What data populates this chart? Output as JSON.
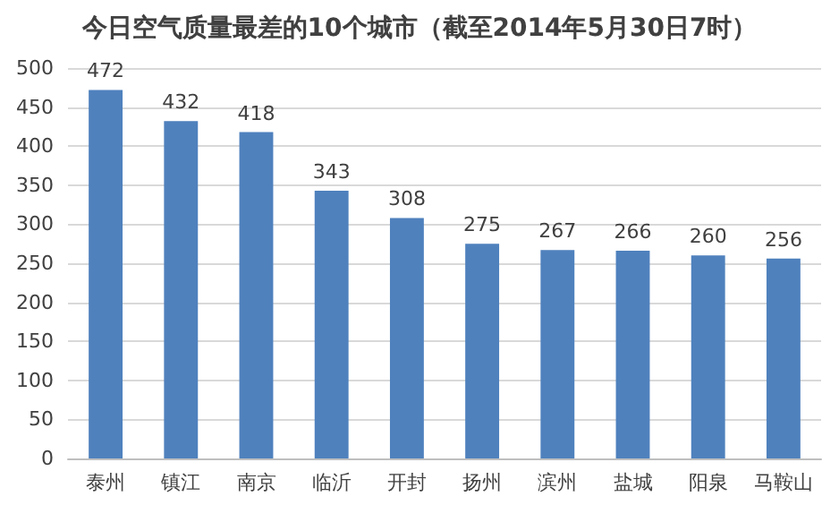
{
  "chart_data": {
    "type": "bar",
    "title": "今日空气质量最差的10个城市（截至2014年5月30日7时）",
    "categories": [
      "泰州",
      "镇江",
      "南京",
      "临沂",
      "开封",
      "扬州",
      "滨州",
      "盐城",
      "阳泉",
      "马鞍山"
    ],
    "values": [
      472,
      432,
      418,
      343,
      308,
      275,
      267,
      266,
      260,
      256
    ],
    "color": "#4f81bd",
    "ylim": [
      0,
      500
    ],
    "yticks": [
      0,
      50,
      100,
      150,
      200,
      250,
      300,
      350,
      400,
      450,
      500
    ],
    "grid": "y",
    "data_labels": true
  }
}
